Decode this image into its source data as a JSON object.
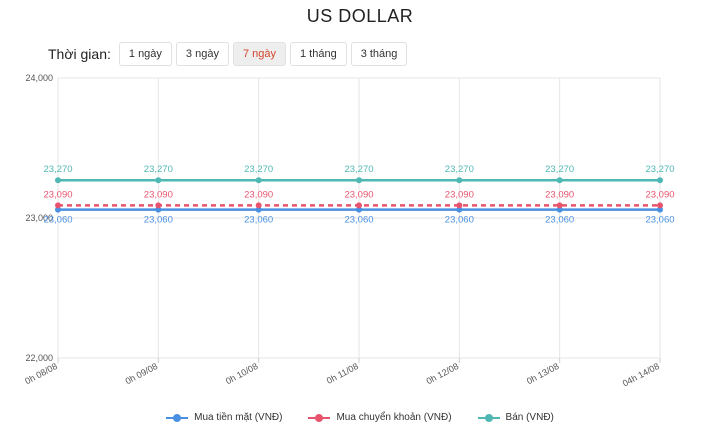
{
  "title": "US DOLLAR",
  "range_selector": {
    "label": "Thời gian:",
    "options": [
      "1 ngày",
      "3 ngày",
      "7 ngày",
      "1 tháng",
      "3 tháng"
    ],
    "selected_index": 2
  },
  "chart_data": {
    "type": "line",
    "x": [
      "0h 08/08",
      "0h 09/08",
      "0h 10/08",
      "0h 11/08",
      "0h 12/08",
      "0h 13/08",
      "04h 14/08"
    ],
    "y_ticks": [
      "22,000",
      "23,000",
      "24,000"
    ],
    "ylim": [
      22000,
      24000
    ],
    "grid": true,
    "legend_position": "bottom",
    "series": [
      {
        "name": "Mua tiền mặt (VNĐ)",
        "color": "#4a90e2",
        "values": [
          23060,
          23060,
          23060,
          23060,
          23060,
          23060,
          23060
        ],
        "labels": [
          "23,060",
          "23,060",
          "23,060",
          "23,060",
          "23,060",
          "23,060",
          "23,060"
        ],
        "dashed": false
      },
      {
        "name": "Mua chuyển khoản (VNĐ)",
        "color": "#e8546d",
        "values": [
          23090,
          23090,
          23090,
          23090,
          23090,
          23090,
          23090
        ],
        "labels": [
          "23,090",
          "23,090",
          "23,090",
          "23,090",
          "23,090",
          "23,090",
          "23,090"
        ],
        "dashed": true
      },
      {
        "name": "Bán (VNĐ)",
        "color": "#4fb8b4",
        "values": [
          23270,
          23270,
          23270,
          23270,
          23270,
          23270,
          23270
        ],
        "labels": [
          "23,270",
          "23,270",
          "23,270",
          "23,270",
          "23,270",
          "23,270",
          "23,270"
        ],
        "dashed": false
      }
    ]
  }
}
